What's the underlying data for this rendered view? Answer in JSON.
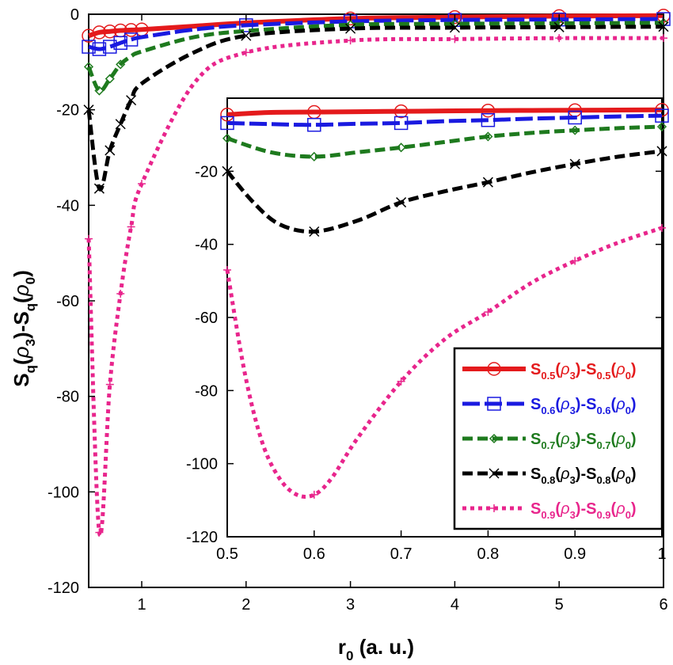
{
  "chart_data": [
    {
      "panel": "main",
      "type": "line",
      "xlim": [
        0.5,
        6
      ],
      "ylim": [
        -120,
        0
      ],
      "xticks": [
        1,
        2,
        3,
        4,
        5,
        6
      ],
      "yticks": [
        0,
        -20,
        -40,
        -60,
        -80,
        -100,
        -120
      ],
      "xlabel": "r",
      "xlabel_sub": "0",
      "xlabel_rest": " (a. u.)",
      "ylabel_parts": {
        "s1": "S",
        "q1": "q",
        "open1": "(",
        "rho1": "ρ",
        "n3": "3",
        "mid": ")-S",
        "q2": "q",
        "open2": "(",
        "rho2": "ρ",
        "n0": "0",
        "close": ")"
      },
      "series": [
        {
          "name": "q=0.5",
          "color": "#e41a1c",
          "marker": "circle",
          "dash": "solid",
          "x": [
            0.5,
            0.6,
            0.7,
            0.8,
            0.9,
            1.0,
            1.5,
            2.0,
            3.0,
            4.0,
            5.0,
            6.0
          ],
          "y": [
            -4.5,
            -3.8,
            -3.6,
            -3.4,
            -3.3,
            -3.2,
            -2.5,
            -1.8,
            -0.9,
            -0.6,
            -0.4,
            -0.3
          ],
          "marker_x": [
            0.5,
            0.6,
            0.7,
            0.8,
            0.9,
            1.0,
            3.0,
            4.0,
            5.0,
            6.0
          ]
        },
        {
          "name": "q=0.6",
          "color": "#1a1ae0",
          "marker": "square",
          "dash": "longdash",
          "x": [
            0.5,
            0.6,
            0.7,
            0.8,
            0.9,
            1.0,
            1.5,
            2.0,
            3.0,
            4.0,
            5.0,
            6.0
          ],
          "y": [
            -6.8,
            -7.3,
            -6.8,
            -6.0,
            -5.3,
            -4.8,
            -3.2,
            -2.3,
            -1.5,
            -1.2,
            -1.1,
            -1.0
          ],
          "marker_x": [
            0.5,
            0.6,
            0.7,
            0.8,
            0.9,
            2.0,
            3.0,
            4.0,
            5.0,
            6.0
          ]
        },
        {
          "name": "q=0.7",
          "color": "#1e7a1e",
          "marker": "diamond",
          "dash": "dash",
          "x": [
            0.5,
            0.6,
            0.7,
            0.8,
            0.9,
            1.0,
            1.5,
            2.0,
            3.0,
            4.0,
            5.0,
            6.0
          ],
          "y": [
            -11,
            -16,
            -13.5,
            -10.5,
            -8.8,
            -7.8,
            -4.8,
            -3.5,
            -2.2,
            -2.0,
            -1.9,
            -1.8
          ],
          "marker_x": [
            0.5,
            0.6,
            0.7,
            0.8,
            3.0,
            4.0,
            5.0,
            6.0
          ]
        },
        {
          "name": "q=0.8",
          "color": "#000000",
          "marker": "x",
          "dash": "dash",
          "x": [
            0.5,
            0.6,
            0.7,
            0.8,
            0.9,
            1.0,
            1.5,
            2.0,
            3.0,
            4.0,
            5.0,
            6.0
          ],
          "y": [
            -20,
            -36.5,
            -28.5,
            -23,
            -18,
            -14.5,
            -8.0,
            -4.5,
            -3.0,
            -2.8,
            -2.7,
            -2.6
          ],
          "marker_x": [
            0.5,
            0.6,
            0.7,
            0.8,
            0.9,
            2.0,
            3.0,
            4.0,
            5.0,
            6.0
          ]
        },
        {
          "name": "q=0.9",
          "color": "#e8258c",
          "marker": "plus",
          "dash": "dot",
          "x": [
            0.5,
            0.6,
            0.7,
            0.8,
            0.9,
            1.0,
            1.5,
            2.0,
            3.0,
            4.0,
            5.0,
            6.0
          ],
          "y": [
            -47,
            -108.5,
            -77.5,
            -58.5,
            -44.5,
            -35.5,
            -14.5,
            -8.0,
            -5.5,
            -5.2,
            -5.0,
            -5.0
          ],
          "marker_x": [
            0.5,
            0.6,
            0.7,
            0.8,
            0.9,
            1.0,
            2.0,
            3.0,
            4.0,
            5.0,
            6.0
          ]
        }
      ]
    },
    {
      "panel": "inset",
      "type": "line",
      "xlim": [
        0.5,
        1.0
      ],
      "ylim": [
        -120,
        0
      ],
      "xticks": [
        0.5,
        0.6,
        0.7,
        0.8,
        0.9,
        1
      ],
      "xtick_labels": [
        "0.5",
        "0.6",
        "0.7",
        "0.8",
        "0.9",
        "1"
      ],
      "yticks": [
        -20,
        -40,
        -60,
        -80,
        -100,
        -120
      ],
      "series": [
        {
          "name": "q=0.5",
          "color": "#e41a1c",
          "marker": "circle",
          "dash": "solid",
          "x": [
            0.5,
            0.55,
            0.6,
            0.65,
            0.7,
            0.75,
            0.8,
            0.85,
            0.9,
            0.95,
            1.0
          ],
          "y": [
            -4.5,
            -3.9,
            -3.8,
            -3.7,
            -3.6,
            -3.5,
            -3.4,
            -3.35,
            -3.3,
            -3.25,
            -3.2
          ],
          "marker_x": [
            0.5,
            0.6,
            0.7,
            0.8,
            0.9,
            1.0
          ]
        },
        {
          "name": "q=0.6",
          "color": "#1a1ae0",
          "marker": "square",
          "dash": "longdash",
          "x": [
            0.5,
            0.55,
            0.6,
            0.65,
            0.7,
            0.75,
            0.8,
            0.85,
            0.9,
            0.95,
            1.0
          ],
          "y": [
            -6.8,
            -7.1,
            -7.3,
            -7.0,
            -6.8,
            -6.3,
            -6.0,
            -5.6,
            -5.3,
            -5.0,
            -4.8
          ],
          "marker_x": [
            0.5,
            0.6,
            0.7,
            0.8,
            0.9,
            1.0
          ]
        },
        {
          "name": "q=0.7",
          "color": "#1e7a1e",
          "marker": "diamond",
          "dash": "dash",
          "x": [
            0.5,
            0.55,
            0.6,
            0.65,
            0.7,
            0.75,
            0.8,
            0.85,
            0.9,
            0.95,
            1.0
          ],
          "y": [
            -11,
            -14.8,
            -16,
            -14.8,
            -13.5,
            -12.0,
            -10.5,
            -9.5,
            -8.8,
            -8.2,
            -7.8
          ],
          "marker_x": [
            0.5,
            0.6,
            0.7,
            0.8,
            0.9,
            1.0
          ]
        },
        {
          "name": "q=0.8",
          "color": "#000000",
          "marker": "x",
          "dash": "dash",
          "x": [
            0.5,
            0.53,
            0.56,
            0.6,
            0.65,
            0.7,
            0.75,
            0.8,
            0.85,
            0.9,
            0.95,
            1.0
          ],
          "y": [
            -20,
            -28.5,
            -34.5,
            -36.5,
            -33.5,
            -28.5,
            -25.5,
            -23,
            -20.3,
            -18,
            -16.0,
            -14.5
          ],
          "marker_x": [
            0.5,
            0.6,
            0.7,
            0.8,
            0.9,
            1.0
          ]
        },
        {
          "name": "q=0.9",
          "color": "#e8258c",
          "marker": "plus",
          "dash": "dot",
          "x": [
            0.5,
            0.52,
            0.54,
            0.56,
            0.58,
            0.6,
            0.62,
            0.65,
            0.7,
            0.75,
            0.8,
            0.85,
            0.9,
            0.95,
            1.0
          ],
          "y": [
            -47,
            -75,
            -94,
            -104,
            -108.5,
            -108.5,
            -104,
            -93,
            -77.5,
            -66,
            -58.5,
            -50.5,
            -44.5,
            -39.5,
            -35.5
          ],
          "marker_x": [
            0.5,
            0.6,
            0.7,
            0.8,
            0.9,
            1.0
          ]
        }
      ]
    }
  ],
  "legend": {
    "placement": "inside inset, bottom-right",
    "entries": [
      {
        "q": "0.5",
        "color": "#e41a1c"
      },
      {
        "q": "0.6",
        "color": "#1a1ae0"
      },
      {
        "q": "0.7",
        "color": "#1e7a1e"
      },
      {
        "q": "0.8",
        "color": "#000000"
      },
      {
        "q": "0.9",
        "color": "#e8258c"
      }
    ],
    "parts": {
      "S": "S",
      "open": "(",
      "rho": "ρ",
      "three": "3",
      "mid": ")-S",
      "zero": "0",
      "close": ")"
    }
  }
}
